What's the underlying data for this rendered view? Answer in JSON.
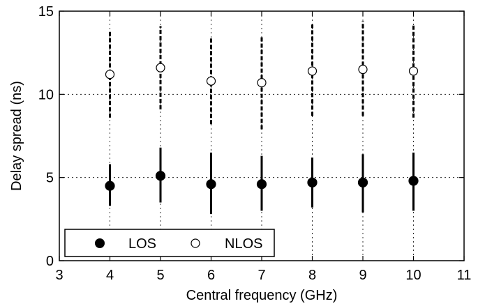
{
  "chart_data": {
    "type": "scatter",
    "title": "",
    "xlabel": "Central frequency (GHz)",
    "ylabel": "Delay spread (ns)",
    "xlim": [
      3,
      11
    ],
    "ylim": [
      0,
      15
    ],
    "xticks": [
      "3",
      "4",
      "5",
      "6",
      "7",
      "8",
      "9",
      "10",
      "11"
    ],
    "yticks": [
      "0",
      "5",
      "10",
      "15"
    ],
    "grid": true,
    "grid_style": "dotted",
    "legend_position": "bottom-left",
    "series": [
      {
        "name": "LOS",
        "marker": "filled-circle",
        "error_bar_style": "solid",
        "color": "#000000",
        "points": [
          {
            "x": 4,
            "y": 4.5,
            "low": 3.3,
            "high": 5.8
          },
          {
            "x": 5,
            "y": 5.1,
            "low": 3.5,
            "high": 6.8
          },
          {
            "x": 6,
            "y": 4.6,
            "low": 2.8,
            "high": 6.5
          },
          {
            "x": 7,
            "y": 4.6,
            "low": 3.0,
            "high": 6.3
          },
          {
            "x": 8,
            "y": 4.7,
            "low": 3.2,
            "high": 6.2
          },
          {
            "x": 9,
            "y": 4.7,
            "low": 2.9,
            "high": 6.4
          },
          {
            "x": 10,
            "y": 4.8,
            "low": 3.0,
            "high": 6.5
          }
        ]
      },
      {
        "name": "NLOS",
        "marker": "open-circle",
        "error_bar_style": "dashed",
        "color": "#000000",
        "points": [
          {
            "x": 4,
            "y": 11.2,
            "low": 8.6,
            "high": 13.8
          },
          {
            "x": 5,
            "y": 11.6,
            "low": 9.1,
            "high": 14.1
          },
          {
            "x": 6,
            "y": 10.8,
            "low": 8.2,
            "high": 13.4
          },
          {
            "x": 7,
            "y": 10.7,
            "low": 7.9,
            "high": 13.5
          },
          {
            "x": 8,
            "y": 11.4,
            "low": 8.7,
            "high": 14.2
          },
          {
            "x": 9,
            "y": 11.5,
            "low": 8.7,
            "high": 14.4
          },
          {
            "x": 10,
            "y": 11.4,
            "low": 8.6,
            "high": 14.2
          }
        ]
      }
    ]
  }
}
